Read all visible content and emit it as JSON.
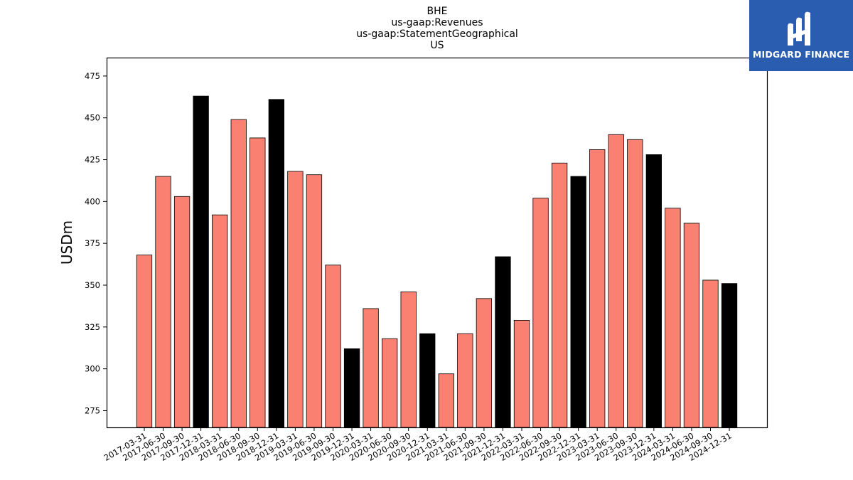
{
  "chart_data": {
    "type": "bar",
    "title_lines": [
      "BHE",
      "us-gaap:Revenues",
      "us-gaap:StatementGeographical",
      "US"
    ],
    "xlabel": "",
    "ylabel": "USDm",
    "ylim": [
      265,
      486
    ],
    "yticks": [
      275,
      300,
      325,
      350,
      375,
      400,
      425,
      450,
      475
    ],
    "categories": [
      "2017-03-31",
      "2017-06-30",
      "2017-09-30",
      "2017-12-31",
      "2018-03-31",
      "2018-06-30",
      "2018-09-30",
      "2018-12-31",
      "2019-03-31",
      "2019-06-30",
      "2019-09-30",
      "2019-12-31",
      "2020-03-31",
      "2020-06-30",
      "2020-09-30",
      "2020-12-31",
      "2021-03-31",
      "2021-06-30",
      "2021-09-30",
      "2021-12-31",
      "2022-03-31",
      "2022-06-30",
      "2022-09-30",
      "2022-12-31",
      "2023-03-31",
      "2023-06-30",
      "2023-09-30",
      "2023-12-31",
      "2024-03-31",
      "2024-06-30",
      "2024-09-30",
      "2024-12-31"
    ],
    "values": [
      368,
      415,
      403,
      463,
      392,
      449,
      438,
      461,
      418,
      416,
      362,
      312,
      336,
      318,
      346,
      321,
      297,
      321,
      342,
      367,
      329,
      402,
      423,
      415,
      431,
      440,
      437,
      428,
      396,
      387,
      353,
      351
    ],
    "colors": {
      "quarter": "#fa8072",
      "year_end": "#000000",
      "edge": "#000000"
    },
    "grid": false,
    "legend": "none"
  },
  "logo": {
    "text": "MIDGARD FINANCE",
    "bg": "#2a5db0"
  }
}
